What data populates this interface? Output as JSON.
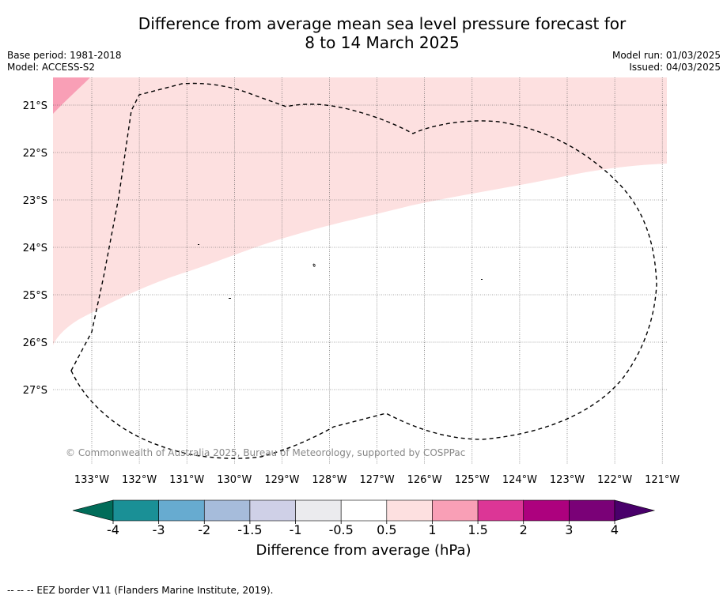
{
  "title_line1": "Difference from average mean sea level pressure forecast for",
  "title_line2": "8 to 14 March 2025",
  "base_period": "Base period: 1981-2018",
  "model": "Model: ACCESS-S2",
  "model_run": "Model run: 01/03/2025",
  "issued": "Issued: 04/03/2025",
  "copyright": "© Commonwealth of Australia 2025, Bureau of Meteorology, supported by COSPPac",
  "lat_labels": [
    "21°S",
    "22°S",
    "23°S",
    "24°S",
    "25°S",
    "26°S",
    "27°S"
  ],
  "lon_labels": [
    "133°W",
    "132°W",
    "131°W",
    "130°W",
    "129°W",
    "128°W",
    "127°W",
    "126°W",
    "125°W",
    "124°W",
    "123°W",
    "122°W",
    "121°W"
  ],
  "colorbar": {
    "title": "Difference from average (hPa)",
    "tick_labels": [
      "-4",
      "-3",
      "-2",
      "-1.5",
      "-1",
      "-0.5",
      "0.5",
      "1",
      "1.5",
      "2",
      "3",
      "4"
    ],
    "colors": [
      "#1a9096",
      "#67abd0",
      "#a6bcdb",
      "#cfd0e7",
      "#ebebee",
      "#ffffff",
      "#fde0e0",
      "#f99fb6",
      "#dc3696",
      "#ad017e",
      "#7a0177"
    ],
    "under_color": "#016c59",
    "over_color": "#49006a"
  },
  "fill_colors": {
    "light_pink": "#fde0e0",
    "pink": "#f99fb6"
  },
  "footer_note": "--  --  -- EEZ border V11 (Flanders Marine Institute, 2019)."
}
